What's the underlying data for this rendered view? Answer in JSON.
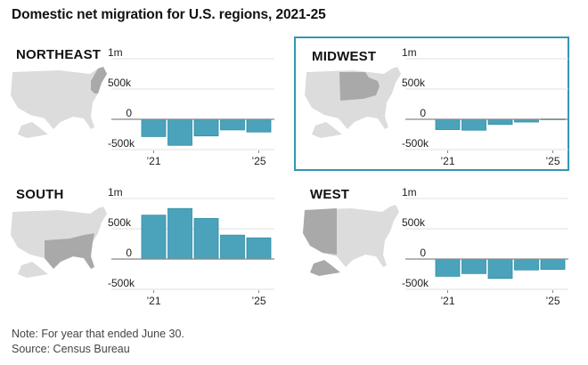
{
  "title": "Domestic net migration for U.S. regions, 2021-25",
  "note": "Note: For year that ended June 30.",
  "source": "Source: Census Bureau",
  "colors": {
    "bar": "#4aa3ba",
    "bar_outline": "#2f8ca6",
    "highlight_border": "#3596b2",
    "map_base": "#dcdcdc",
    "map_highlight": "#a9a9a9",
    "gridline": "#e2e2e2",
    "zero_line": "#888888"
  },
  "chart_data": [
    {
      "type": "bar",
      "title": "NORTHEAST",
      "categories": [
        "2021",
        "2022",
        "2023",
        "2024",
        "2025"
      ],
      "values": [
        -285000,
        -430000,
        -275000,
        -175000,
        -210000
      ],
      "ylim": [
        -500000,
        1000000
      ],
      "yticks": [
        {
          "value": 1000000,
          "label": "1m"
        },
        {
          "value": 500000,
          "label": "500k"
        },
        {
          "value": 0,
          "label": "0"
        },
        {
          "value": -500000,
          "label": "-500k"
        }
      ],
      "xticks": [
        {
          "index": 0,
          "label": "’21"
        },
        {
          "index": 4,
          "label": "’25"
        }
      ],
      "highlighted": false,
      "grid": true
    },
    {
      "type": "bar",
      "title": "MIDWEST",
      "categories": [
        "2021",
        "2022",
        "2023",
        "2024",
        "2025"
      ],
      "values": [
        -170000,
        -180000,
        -85000,
        -45000,
        5000
      ],
      "ylim": [
        -500000,
        1000000
      ],
      "yticks": [
        {
          "value": 1000000,
          "label": "1m"
        },
        {
          "value": 500000,
          "label": "500k"
        },
        {
          "value": 0,
          "label": "0"
        },
        {
          "value": -500000,
          "label": "-500k"
        }
      ],
      "xticks": [
        {
          "index": 0,
          "label": "’21"
        },
        {
          "index": 4,
          "label": "’25"
        }
      ],
      "highlighted": true,
      "grid": true
    },
    {
      "type": "bar",
      "title": "SOUTH",
      "categories": [
        "2021",
        "2022",
        "2023",
        "2024",
        "2025"
      ],
      "values": [
        725000,
        835000,
        670000,
        395000,
        350000
      ],
      "ylim": [
        -500000,
        1000000
      ],
      "yticks": [
        {
          "value": 1000000,
          "label": "1m"
        },
        {
          "value": 500000,
          "label": "500k"
        },
        {
          "value": 0,
          "label": "0"
        },
        {
          "value": -500000,
          "label": "-500k"
        }
      ],
      "xticks": [
        {
          "index": 0,
          "label": "’21"
        },
        {
          "index": 4,
          "label": "’25"
        }
      ],
      "highlighted": false,
      "grid": true
    },
    {
      "type": "bar",
      "title": "WEST",
      "categories": [
        "2021",
        "2022",
        "2023",
        "2024",
        "2025"
      ],
      "values": [
        -285000,
        -240000,
        -320000,
        -180000,
        -170000
      ],
      "ylim": [
        -500000,
        1000000
      ],
      "yticks": [
        {
          "value": 1000000,
          "label": "1m"
        },
        {
          "value": 500000,
          "label": "500k"
        },
        {
          "value": 0,
          "label": "0"
        },
        {
          "value": -500000,
          "label": "-500k"
        }
      ],
      "xticks": [
        {
          "index": 0,
          "label": "’21"
        },
        {
          "index": 4,
          "label": "’25"
        }
      ],
      "highlighted": false,
      "grid": true
    }
  ]
}
